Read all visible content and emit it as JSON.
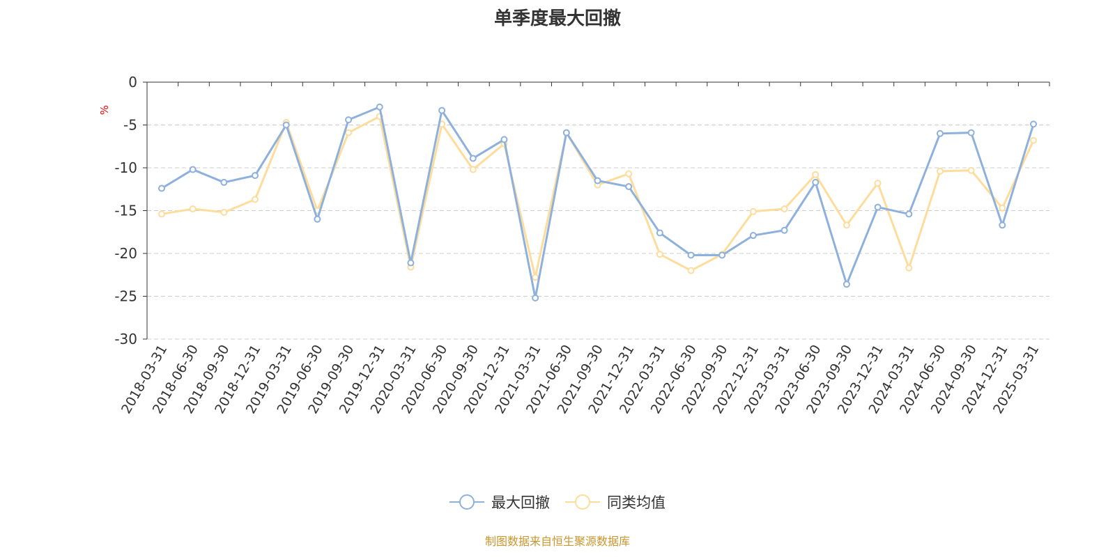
{
  "chart_data": {
    "type": "line",
    "title": "单季度最大回撤",
    "ylabel": "%",
    "ylim": [
      -30,
      0
    ],
    "yticks": [
      0,
      -5,
      -10,
      -15,
      -20,
      -25,
      -30
    ],
    "grid": true,
    "legend_position": "bottom",
    "categories": [
      "2018-03-31",
      "2018-06-30",
      "2018-09-30",
      "2018-12-31",
      "2019-03-31",
      "2019-06-30",
      "2019-09-30",
      "2019-12-31",
      "2020-03-31",
      "2020-06-30",
      "2020-09-30",
      "2020-12-31",
      "2021-03-31",
      "2021-06-30",
      "2021-09-30",
      "2021-12-31",
      "2022-03-31",
      "2022-06-30",
      "2022-09-30",
      "2022-12-31",
      "2023-03-31",
      "2023-06-30",
      "2023-09-30",
      "2023-12-31",
      "2024-03-31",
      "2024-06-30",
      "2024-09-30",
      "2024-12-31",
      "2025-03-31"
    ],
    "series": [
      {
        "name": "最大回撤",
        "color": "#8eb0dd",
        "values": [
          -12.4,
          -10.2,
          -11.7,
          -10.9,
          -5.0,
          -16.0,
          -4.4,
          -2.9,
          -21.1,
          -3.3,
          -8.9,
          -6.7,
          -25.2,
          -5.9,
          -11.5,
          -12.2,
          -17.6,
          -20.2,
          -20.2,
          -17.9,
          -17.3,
          -11.7,
          -23.6,
          -14.6,
          -15.4,
          -6.0,
          -5.9,
          -16.7,
          -4.9
        ]
      },
      {
        "name": "同类均值",
        "color": "#fddc9c",
        "values": [
          -15.4,
          -14.8,
          -15.2,
          -13.7,
          -4.7,
          -15.0,
          -5.9,
          -4.0,
          -21.6,
          -4.9,
          -10.2,
          -7.2,
          -22.8,
          -5.9,
          -12.0,
          -10.7,
          -20.1,
          -22.0,
          -20.1,
          -15.1,
          -14.8,
          -10.8,
          -16.7,
          -11.8,
          -21.7,
          -10.4,
          -10.3,
          -14.7,
          -6.8
        ]
      }
    ]
  },
  "footer": "制图数据来自恒生聚源数据库"
}
